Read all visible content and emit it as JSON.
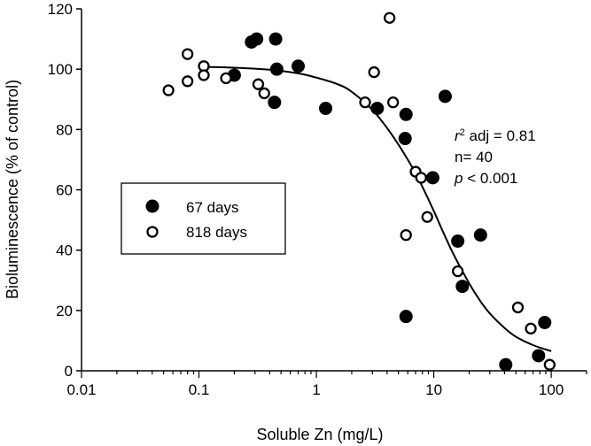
{
  "chart_data": {
    "type": "scatter",
    "title": "",
    "xlabel": "Soluble Zn (mg/L)",
    "ylabel": "Bioluminescence (% of control)",
    "xscale": "log",
    "xlim": [
      0.01,
      200
    ],
    "ylim": [
      0,
      120
    ],
    "x_ticks": [
      0.01,
      0.1,
      1,
      10,
      100
    ],
    "x_tick_labels": [
      "0.01",
      "0.1",
      "1",
      "10",
      "100"
    ],
    "y_ticks": [
      0,
      20,
      40,
      60,
      80,
      100,
      120
    ],
    "y_tick_labels": [
      "0",
      "20",
      "40",
      "60",
      "80",
      "100",
      "120"
    ],
    "grid": false,
    "legend_position": "middle-left",
    "series": [
      {
        "name": "67 days",
        "marker": "filled-circle",
        "color": "#000000",
        "points": [
          {
            "x": 0.2,
            "y": 98
          },
          {
            "x": 0.28,
            "y": 109
          },
          {
            "x": 0.31,
            "y": 110
          },
          {
            "x": 0.45,
            "y": 110
          },
          {
            "x": 0.46,
            "y": 100
          },
          {
            "x": 0.44,
            "y": 89
          },
          {
            "x": 0.7,
            "y": 101
          },
          {
            "x": 1.2,
            "y": 87
          },
          {
            "x": 3.3,
            "y": 87
          },
          {
            "x": 5.8,
            "y": 85
          },
          {
            "x": 5.7,
            "y": 77
          },
          {
            "x": 5.8,
            "y": 18
          },
          {
            "x": 9.8,
            "y": 64
          },
          {
            "x": 12.5,
            "y": 91
          },
          {
            "x": 16,
            "y": 43
          },
          {
            "x": 17.5,
            "y": 28
          },
          {
            "x": 25,
            "y": 45
          },
          {
            "x": 41,
            "y": 2
          },
          {
            "x": 78,
            "y": 5
          },
          {
            "x": 88,
            "y": 16
          }
        ]
      },
      {
        "name": "818 days",
        "marker": "open-circle",
        "color": "#000000",
        "points": [
          {
            "x": 0.055,
            "y": 93
          },
          {
            "x": 0.08,
            "y": 105
          },
          {
            "x": 0.08,
            "y": 96
          },
          {
            "x": 0.11,
            "y": 101
          },
          {
            "x": 0.11,
            "y": 98
          },
          {
            "x": 0.17,
            "y": 97
          },
          {
            "x": 0.32,
            "y": 95
          },
          {
            "x": 0.36,
            "y": 92
          },
          {
            "x": 2.6,
            "y": 89
          },
          {
            "x": 3.1,
            "y": 99
          },
          {
            "x": 4.2,
            "y": 117
          },
          {
            "x": 4.5,
            "y": 89
          },
          {
            "x": 5.8,
            "y": 45
          },
          {
            "x": 7.0,
            "y": 66
          },
          {
            "x": 7.8,
            "y": 64
          },
          {
            "x": 8.8,
            "y": 51
          },
          {
            "x": 16,
            "y": 33
          },
          {
            "x": 52,
            "y": 21
          },
          {
            "x": 67,
            "y": 14
          },
          {
            "x": 97,
            "y": 2
          }
        ]
      }
    ],
    "fit_curve": {
      "points": [
        {
          "x": 0.1,
          "y": 100.8
        },
        {
          "x": 0.2,
          "y": 100.5
        },
        {
          "x": 0.4,
          "y": 99.8
        },
        {
          "x": 0.7,
          "y": 98.6
        },
        {
          "x": 1,
          "y": 97.2
        },
        {
          "x": 1.5,
          "y": 95.1
        },
        {
          "x": 2,
          "y": 92.5
        },
        {
          "x": 3,
          "y": 86.5
        },
        {
          "x": 4,
          "y": 80.5
        },
        {
          "x": 5,
          "y": 75
        },
        {
          "x": 6,
          "y": 70
        },
        {
          "x": 7,
          "y": 65.5
        },
        {
          "x": 8,
          "y": 61
        },
        {
          "x": 10,
          "y": 53
        },
        {
          "x": 12,
          "y": 46
        },
        {
          "x": 15,
          "y": 38
        },
        {
          "x": 20,
          "y": 29
        },
        {
          "x": 25,
          "y": 23
        },
        {
          "x": 30,
          "y": 19
        },
        {
          "x": 40,
          "y": 14.2
        },
        {
          "x": 50,
          "y": 11.3
        },
        {
          "x": 70,
          "y": 8.5
        },
        {
          "x": 100,
          "y": 6.5
        }
      ]
    },
    "annotations": {
      "r2_symbol": "r",
      "r2_superscript": "2",
      "r2_rest": " adj = 0.81",
      "n_text": "n= 40",
      "p_symbol": "p",
      "p_rest": " < 0.001"
    }
  }
}
